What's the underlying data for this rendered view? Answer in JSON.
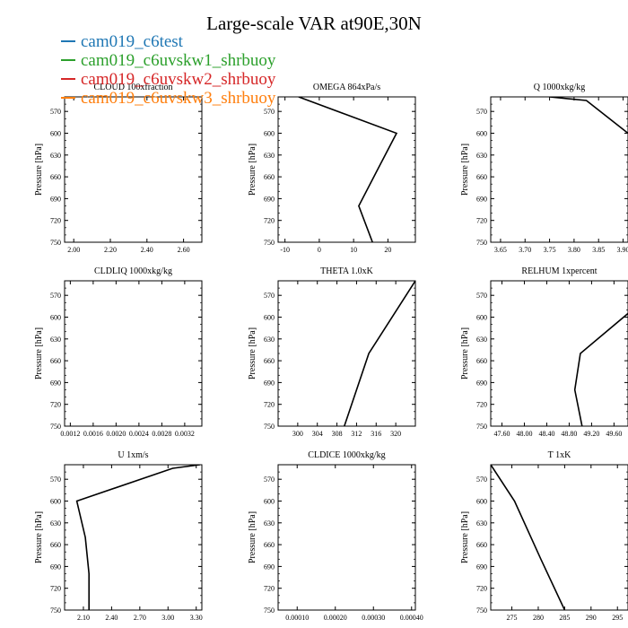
{
  "title": "Large-scale VAR at90E,30N",
  "legend": [
    {
      "label": "cam019_c6test",
      "color": "#1f77b4"
    },
    {
      "label": "cam019_c6uvskw1_shrbuoy",
      "color": "#2ca02c"
    },
    {
      "label": "cam019_c6uvskw2_shrbuoy",
      "color": "#d62728"
    },
    {
      "label": "cam019_c6uvskw3_shrbuoy",
      "color": "#ff7f0e"
    }
  ],
  "chart_data": [
    {
      "type": "line",
      "title": "CLOUD 100xfraction",
      "ylabel": "Pressure [hPa]",
      "xlim": [
        1.95,
        2.7
      ],
      "xticks": [
        2.0,
        2.2,
        2.4,
        2.6
      ],
      "xtick_labels": [
        "2.00",
        "2.20",
        "2.40",
        "2.60"
      ],
      "ylim": [
        550,
        750
      ],
      "yticks": [
        570,
        600,
        630,
        660,
        690,
        720,
        750
      ],
      "y_inverted": true,
      "series": [
        {
          "color": "#000000",
          "x": [],
          "y": []
        }
      ]
    },
    {
      "type": "line",
      "title": "OMEGA 864xPa/s",
      "ylabel": "Pressure [hPa]",
      "xlim": [
        -12,
        28
      ],
      "xticks": [
        -10,
        0,
        10,
        20
      ],
      "xtick_labels": [
        "-10",
        "0",
        "10",
        "20"
      ],
      "ylim": [
        550,
        750
      ],
      "yticks": [
        570,
        600,
        630,
        660,
        690,
        720,
        750
      ],
      "y_inverted": true,
      "series": [
        {
          "color": "#000000",
          "x": [
            -6,
            22.5,
            17,
            11.5,
            15.5
          ],
          "y": [
            550,
            600,
            650,
            700,
            750
          ]
        }
      ]
    },
    {
      "type": "line",
      "title": "Q 1000xkg/kg",
      "ylabel": "Pressure [hPa]",
      "xlim": [
        3.63,
        3.91
      ],
      "xticks": [
        3.65,
        3.7,
        3.75,
        3.8,
        3.85,
        3.9
      ],
      "xtick_labels": [
        "3.65",
        "3.70",
        "3.75",
        "3.80",
        "3.85",
        "3.90"
      ],
      "ylim": [
        550,
        750
      ],
      "yticks": [
        570,
        600,
        630,
        660,
        690,
        720,
        750
      ],
      "y_inverted": true,
      "series": [
        {
          "color": "#000000",
          "x": [
            3.75,
            3.825,
            3.91
          ],
          "y": [
            550,
            555,
            600
          ]
        }
      ]
    },
    {
      "type": "line",
      "title": "CLDLIQ 1000xkg/kg",
      "ylabel": "Pressure [hPa]",
      "xlim": [
        0.0011,
        0.0035
      ],
      "xticks": [
        0.0012,
        0.0016,
        0.002,
        0.0024,
        0.0028,
        0.0032
      ],
      "xtick_labels": [
        "0.0012",
        "0.0016",
        "0.0020",
        "0.0024",
        "0.0028",
        "0.0032"
      ],
      "ylim": [
        550,
        750
      ],
      "yticks": [
        570,
        600,
        630,
        660,
        690,
        720,
        750
      ],
      "y_inverted": true,
      "series": [
        {
          "color": "#000000",
          "x": [],
          "y": []
        }
      ]
    },
    {
      "type": "line",
      "title": "THETA 1.0xK",
      "ylabel": "Pressure [hPa]",
      "xlim": [
        296,
        324
      ],
      "xticks": [
        300,
        304,
        308,
        312,
        316,
        320
      ],
      "xtick_labels": [
        "300",
        "304",
        "308",
        "312",
        "316",
        "320"
      ],
      "ylim": [
        550,
        750
      ],
      "yticks": [
        570,
        600,
        630,
        660,
        690,
        720,
        750
      ],
      "y_inverted": true,
      "series": [
        {
          "color": "#000000",
          "x": [
            309.5,
            314.5,
            324
          ],
          "y": [
            750,
            650,
            550
          ]
        }
      ]
    },
    {
      "type": "line",
      "title": "RELHUM 1xpercent",
      "ylabel": "Pressure [hPa]",
      "xlim": [
        47.4,
        49.85
      ],
      "xticks": [
        47.6,
        48.0,
        48.4,
        48.8,
        49.2,
        49.6
      ],
      "xtick_labels": [
        "47.60",
        "48.00",
        "48.40",
        "48.80",
        "49.20",
        "49.60"
      ],
      "ylim": [
        550,
        750
      ],
      "yticks": [
        570,
        600,
        630,
        660,
        690,
        720,
        750
      ],
      "y_inverted": true,
      "series": [
        {
          "color": "#000000",
          "x": [
            49.85,
            49.0,
            48.9,
            49.03
          ],
          "y": [
            595,
            650,
            700,
            750
          ]
        }
      ]
    },
    {
      "type": "line",
      "title": "U 1xm/s",
      "ylabel": "Pressure [hPa]",
      "xlim": [
        1.9,
        3.36
      ],
      "xticks": [
        2.1,
        2.4,
        2.7,
        3.0,
        3.3
      ],
      "xtick_labels": [
        "2.10",
        "2.40",
        "2.70",
        "3.00",
        "3.30"
      ],
      "ylim": [
        550,
        750
      ],
      "yticks": [
        570,
        600,
        630,
        660,
        690,
        720,
        750
      ],
      "y_inverted": true,
      "series": [
        {
          "color": "#000000",
          "x": [
            3.34,
            3.05,
            2.03,
            2.12,
            2.16,
            2.16
          ],
          "y": [
            550,
            555,
            600,
            650,
            700,
            750
          ]
        }
      ]
    },
    {
      "type": "line",
      "title": "CLDICE 1000xkg/kg",
      "ylabel": "Pressure [hPa]",
      "xlim": [
        5e-05,
        0.00041
      ],
      "xticks": [
        0.0001,
        0.0002,
        0.0003,
        0.0004
      ],
      "xtick_labels": [
        "0.00010",
        "0.00020",
        "0.00030",
        "0.00040"
      ],
      "ylim": [
        550,
        750
      ],
      "yticks": [
        570,
        600,
        630,
        660,
        690,
        720,
        750
      ],
      "y_inverted": true,
      "series": [
        {
          "color": "#000000",
          "x": [],
          "y": []
        }
      ]
    },
    {
      "type": "line",
      "title": "T 1xK",
      "ylabel": "Pressure [hPa]",
      "xlim": [
        271,
        297
      ],
      "xticks": [
        275,
        280,
        285,
        290,
        295
      ],
      "xtick_labels": [
        "275",
        "280",
        "285",
        "290",
        "295"
      ],
      "ylim": [
        550,
        750
      ],
      "yticks": [
        570,
        600,
        630,
        660,
        690,
        720,
        750
      ],
      "y_inverted": true,
      "series": [
        {
          "color": "#000000",
          "x": [
            271,
            275.5,
            280.5,
            285
          ],
          "y": [
            550,
            600,
            680,
            750
          ]
        }
      ]
    }
  ]
}
